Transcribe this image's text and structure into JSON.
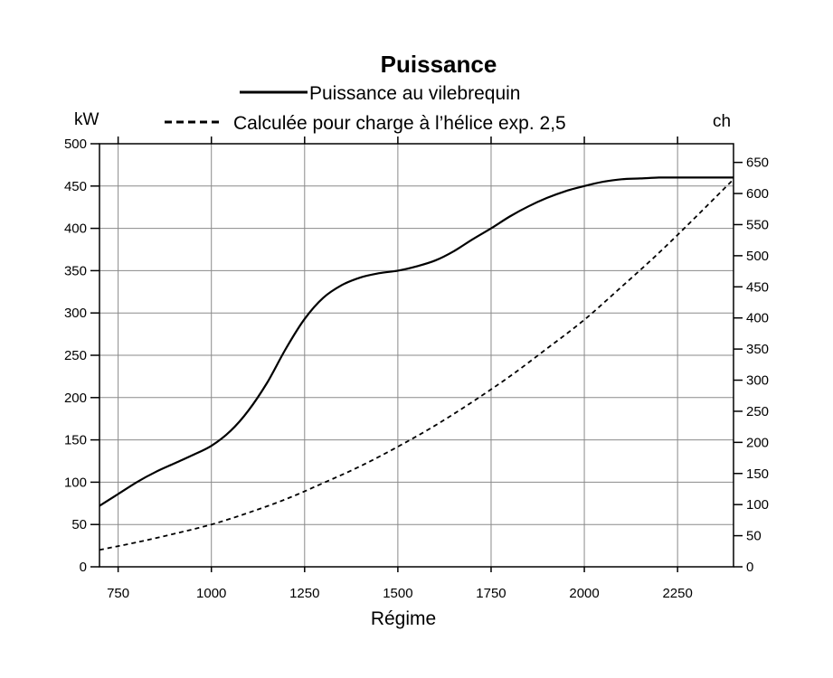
{
  "chart_data": {
    "type": "line",
    "title": "Puissance",
    "xlabel": "Régime",
    "ylabel_left": "kW",
    "ylabel_right": "ch",
    "xlim": [
      700,
      2400
    ],
    "ylim": [
      0,
      500
    ],
    "ylim_right": [
      0,
      680
    ],
    "x_ticks": [
      750,
      1000,
      1250,
      1500,
      1750,
      2000,
      2250
    ],
    "y_ticks_left": [
      0,
      50,
      100,
      150,
      200,
      250,
      300,
      350,
      400,
      450,
      500
    ],
    "y_ticks_right": [
      0,
      50,
      100,
      150,
      200,
      250,
      300,
      350,
      400,
      450,
      500,
      550,
      600,
      650
    ],
    "grid": true,
    "legend_position": "top-center",
    "series": [
      {
        "name": "Puissance au vilebrequin",
        "style": "solid",
        "color": "#000000",
        "x": [
          700,
          750,
          800,
          850,
          900,
          950,
          1000,
          1050,
          1100,
          1150,
          1200,
          1250,
          1300,
          1350,
          1400,
          1450,
          1500,
          1550,
          1600,
          1650,
          1700,
          1750,
          1800,
          1850,
          1900,
          1950,
          2000,
          2050,
          2100,
          2150,
          2200,
          2250,
          2300,
          2350,
          2400
        ],
        "y": [
          72,
          86,
          100,
          112,
          122,
          132,
          143,
          160,
          185,
          218,
          258,
          293,
          318,
          333,
          342,
          347,
          350,
          355,
          362,
          373,
          387,
          400,
          414,
          426,
          436,
          444,
          450,
          455,
          458,
          459,
          460,
          460,
          460,
          460,
          460
        ]
      },
      {
        "name": "Calculée pour charge à l’hélice exp. 2,5",
        "style": "dashed",
        "color": "#000000",
        "x": [
          700,
          800,
          900,
          1000,
          1100,
          1200,
          1300,
          1400,
          1500,
          1600,
          1700,
          1800,
          1900,
          2000,
          2100,
          2200,
          2300,
          2400
        ],
        "y": [
          20,
          29,
          39,
          50,
          64,
          80,
          99,
          119,
          142,
          167,
          195,
          225,
          258,
          292,
          331,
          371,
          414,
          458
        ]
      }
    ]
  }
}
